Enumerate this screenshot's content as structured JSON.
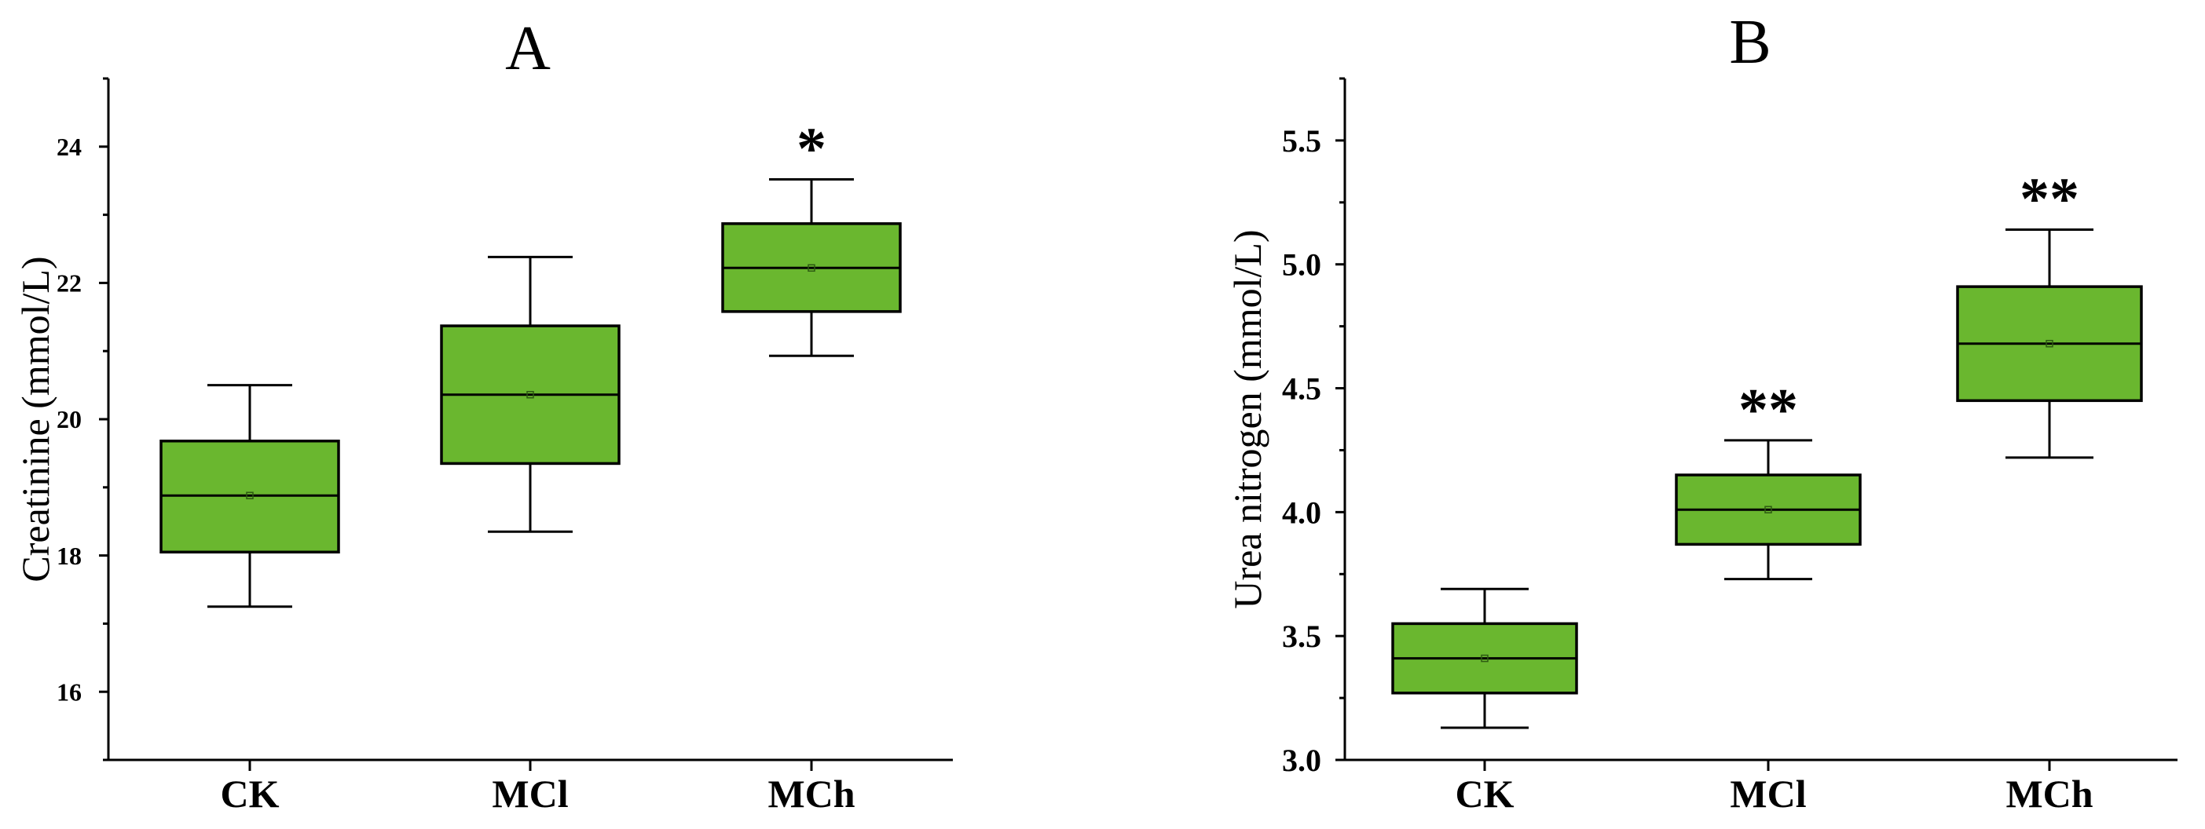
{
  "chart_data": [
    {
      "type": "box",
      "panel_label": "A",
      "xlabel": "",
      "ylabel": "Creatinine (mmol/L)",
      "ylim": [
        15,
        25
      ],
      "yticks": [
        "16",
        "18",
        "20",
        "22",
        "24"
      ],
      "categories": [
        "CK",
        "MCl",
        "MCh"
      ],
      "boxes": [
        {
          "category": "CK",
          "whisker_low": 17.25,
          "q1": 18.05,
          "median": 18.88,
          "mean": 18.88,
          "q3": 19.68,
          "whisker_high": 20.5,
          "significance": ""
        },
        {
          "category": "MCl",
          "whisker_low": 18.35,
          "q1": 19.35,
          "median": 20.36,
          "mean": 20.36,
          "q3": 21.37,
          "whisker_high": 22.38,
          "significance": ""
        },
        {
          "category": "MCh",
          "whisker_low": 20.93,
          "q1": 21.58,
          "median": 22.22,
          "mean": 22.22,
          "q3": 22.87,
          "whisker_high": 23.52,
          "significance": "*"
        }
      ],
      "box_color": "#6ab72f"
    },
    {
      "type": "box",
      "panel_label": "B",
      "xlabel": "",
      "ylabel": "Urea nitrogen (mmol/L)",
      "ylim": [
        3.0,
        5.75
      ],
      "yticks": [
        "3.0",
        "3.5",
        "4.0",
        "4.5",
        "5.0",
        "5.5"
      ],
      "categories": [
        "CK",
        "MCl",
        "MCh"
      ],
      "boxes": [
        {
          "category": "CK",
          "whisker_low": 3.13,
          "q1": 3.27,
          "median": 3.41,
          "mean": 3.41,
          "q3": 3.55,
          "whisker_high": 3.69,
          "significance": ""
        },
        {
          "category": "MCl",
          "whisker_low": 3.73,
          "q1": 3.87,
          "median": 4.01,
          "mean": 4.01,
          "q3": 4.15,
          "whisker_high": 4.29,
          "significance": "**"
        },
        {
          "category": "MCh",
          "whisker_low": 4.22,
          "q1": 4.45,
          "median": 4.68,
          "mean": 4.68,
          "q3": 4.91,
          "whisker_high": 5.14,
          "significance": "**"
        }
      ],
      "box_color": "#6ab72f"
    }
  ]
}
